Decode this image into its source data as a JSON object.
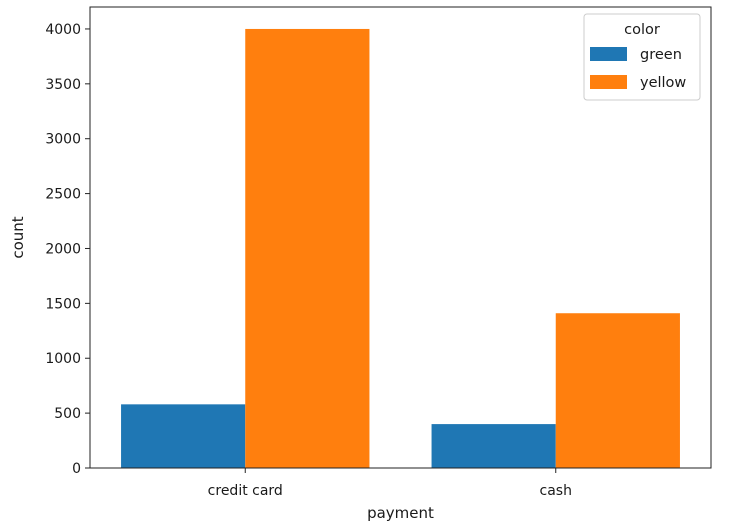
{
  "chart_data": {
    "type": "bar",
    "title": "",
    "xlabel": "payment",
    "ylabel": "count",
    "categories": [
      "credit card",
      "cash"
    ],
    "series": [
      {
        "name": "green",
        "color": "#1f77b4",
        "values": [
          580,
          400
        ]
      },
      {
        "name": "yellow",
        "color": "#ff7f0e",
        "values": [
          4000,
          1410
        ]
      }
    ],
    "ylim": [
      0,
      4200
    ],
    "yticks": [
      0,
      500,
      1000,
      1500,
      2000,
      2500,
      3000,
      3500,
      4000
    ],
    "grid": false,
    "legend": {
      "title": "color",
      "placement": "top-right"
    }
  }
}
